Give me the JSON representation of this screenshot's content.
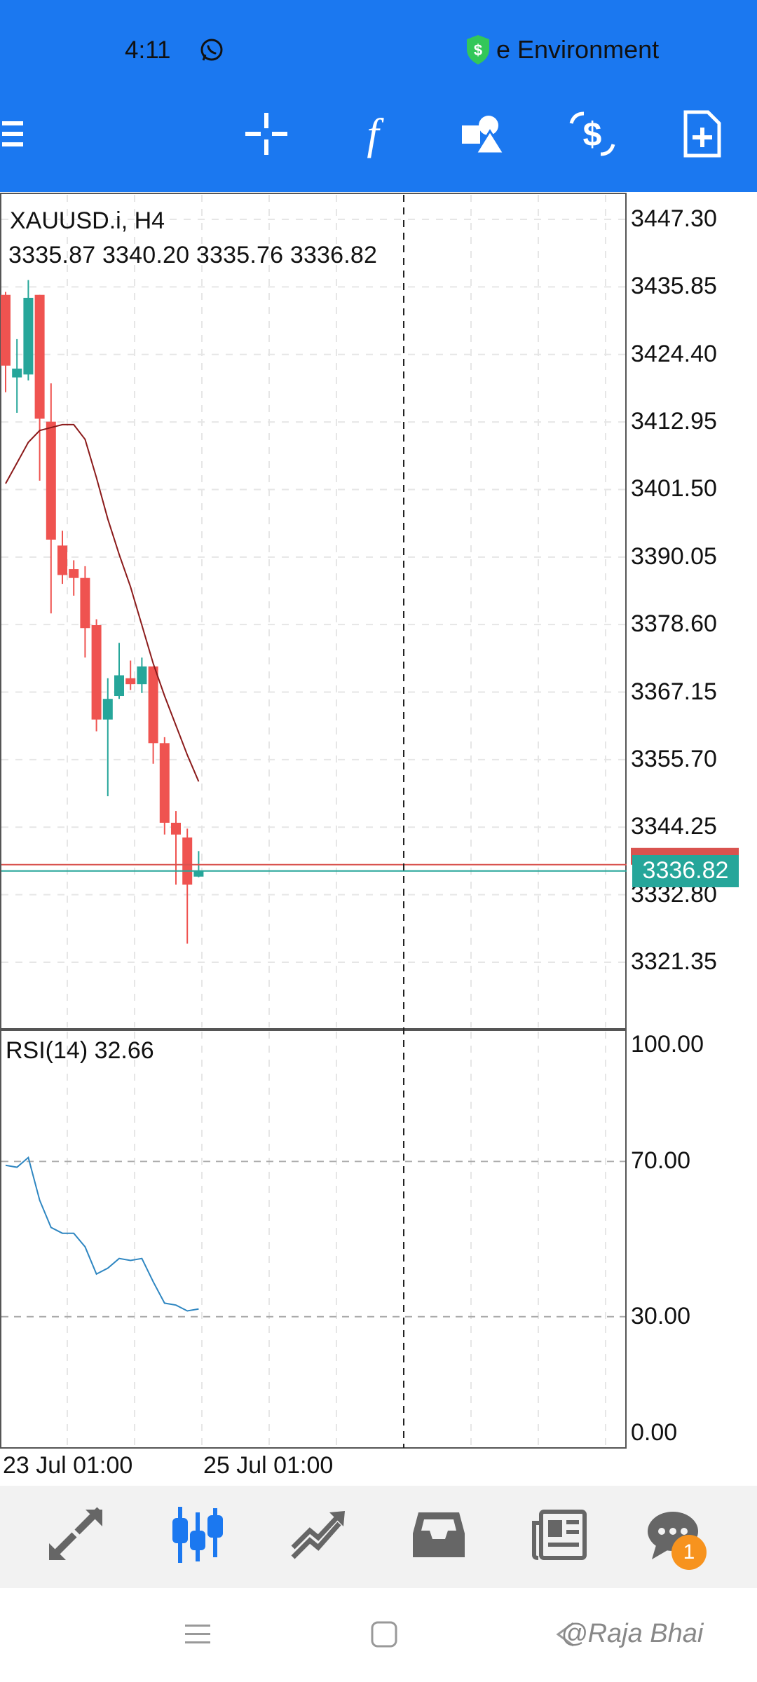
{
  "status_bar": {
    "time": "4:11",
    "environment_label": "e Environment"
  },
  "toolbar": {
    "items": [
      {
        "name": "menu-icon"
      },
      {
        "name": "crosshair-icon"
      },
      {
        "name": "indicators-icon"
      },
      {
        "name": "objects-icon"
      },
      {
        "name": "trade-icon"
      },
      {
        "name": "templates-icon"
      }
    ],
    "accent": "#1b78f0"
  },
  "chart": {
    "symbol": "XAUUSD.i, H4",
    "ohlc": "3335.87 3340.20 3335.76 3336.82",
    "current_price": "3336.82",
    "price_axis": [
      "3447.30",
      "3435.85",
      "3424.40",
      "3412.95",
      "3401.50",
      "3390.05",
      "3378.60",
      "3367.15",
      "3355.70",
      "3344.25",
      "3332.80",
      "3321.35"
    ],
    "x_labels": [
      "23 Jul 01:00",
      "25 Jul 01:00"
    ],
    "rsi": {
      "title": "RSI(14) 32.66",
      "axis": [
        "100.00",
        "70.00",
        "30.00",
        "0.00"
      ]
    },
    "up_color": "#26a69a",
    "down_color": "#ef5350"
  },
  "chart_data": {
    "type": "candlestick",
    "candles": [
      {
        "o": 3434.5,
        "h": 3435.0,
        "l": 3418.0,
        "c": 3422.5
      },
      {
        "o": 3420.5,
        "h": 3427.0,
        "l": 3414.5,
        "c": 3422.0
      },
      {
        "o": 3421.0,
        "h": 3437.0,
        "l": 3420.0,
        "c": 3434.0
      },
      {
        "o": 3434.5,
        "h": 3434.5,
        "l": 3403.0,
        "c": 3413.5
      },
      {
        "o": 3413.0,
        "h": 3419.5,
        "l": 3380.5,
        "c": 3393.0
      },
      {
        "o": 3392.0,
        "h": 3394.5,
        "l": 3385.5,
        "c": 3387.0
      },
      {
        "o": 3388.0,
        "h": 3389.5,
        "l": 3383.5,
        "c": 3386.5
      },
      {
        "o": 3386.5,
        "h": 3388.5,
        "l": 3373.0,
        "c": 3378.0
      },
      {
        "o": 3378.5,
        "h": 3379.5,
        "l": 3360.5,
        "c": 3362.5
      },
      {
        "o": 3362.5,
        "h": 3369.5,
        "l": 3349.5,
        "c": 3366.0
      },
      {
        "o": 3366.5,
        "h": 3375.5,
        "l": 3366.0,
        "c": 3370.0
      },
      {
        "o": 3369.5,
        "h": 3372.5,
        "l": 3367.5,
        "c": 3368.5
      },
      {
        "o": 3368.5,
        "h": 3373.0,
        "l": 3367.0,
        "c": 3371.5
      },
      {
        "o": 3371.5,
        "h": 3371.5,
        "l": 3355.0,
        "c": 3358.5
      },
      {
        "o": 3358.5,
        "h": 3359.5,
        "l": 3343.0,
        "c": 3345.0
      },
      {
        "o": 3345.0,
        "h": 3347.0,
        "l": 3334.5,
        "c": 3343.0
      },
      {
        "o": 3342.5,
        "h": 3344.0,
        "l": 3324.5,
        "c": 3334.5
      },
      {
        "o": 3335.87,
        "h": 3340.2,
        "l": 3335.76,
        "c": 3336.82
      }
    ],
    "ma": [
      3402.5,
      3406.0,
      3409.5,
      3411.5,
      3412.0,
      3412.5,
      3412.5,
      3410.0,
      3403.5,
      3396.5,
      3390.5,
      3385.0,
      3378.5,
      3372.0,
      3366.5,
      3361.5,
      3356.5,
      3352.0
    ],
    "rsi_values": [
      69.0,
      68.5,
      71.0,
      60.0,
      53.0,
      51.5,
      51.5,
      48.0,
      41.0,
      42.5,
      45.0,
      44.5,
      45.0,
      39.0,
      33.5,
      33.0,
      31.5,
      32.0
    ],
    "ylim": [
      3312.0,
      3450.0
    ],
    "rsi_ylim": [
      0,
      100
    ],
    "rsi_levels": [
      70,
      30
    ]
  },
  "bottom_nav": {
    "items": [
      {
        "name": "quotes-icon"
      },
      {
        "name": "chart-icon"
      },
      {
        "name": "trade-nav-icon"
      },
      {
        "name": "history-icon"
      },
      {
        "name": "news-icon"
      },
      {
        "name": "messages-icon"
      }
    ],
    "messages_badge": "1"
  },
  "system_nav": {
    "watermark": "@Raja Bhai"
  }
}
